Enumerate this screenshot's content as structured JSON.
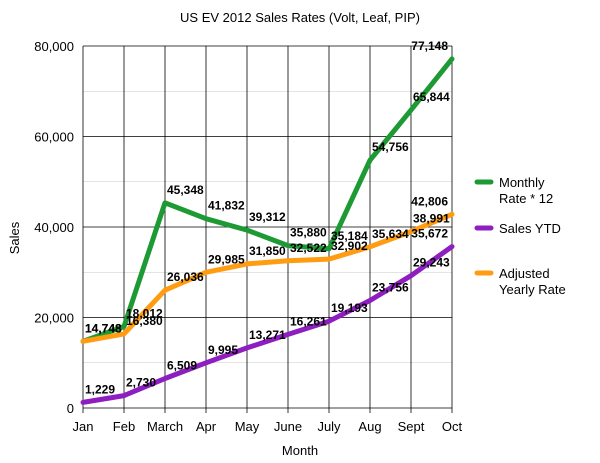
{
  "chart_data": {
    "type": "line",
    "title": "US EV 2012 Sales Rates (Volt, Leaf, PIP)",
    "xlabel": "Month",
    "ylabel": "Sales",
    "categories": [
      "Jan",
      "Feb",
      "March",
      "Apr",
      "May",
      "June",
      "July",
      "Aug",
      "Sept",
      "Oct"
    ],
    "ylim": [
      0,
      80000
    ],
    "yticks": [
      0,
      20000,
      40000,
      60000,
      80000
    ],
    "ytick_labels": [
      "0",
      "20,000",
      "40,000",
      "60,000",
      "80,000"
    ],
    "grid": "horizontal",
    "legend_position": "right",
    "series": [
      {
        "name": "Monthly Rate * 12",
        "legend_lines": [
          "Monthly",
          "Rate * 12"
        ],
        "color": "#1e9a35",
        "values": [
          14748,
          18012,
          45348,
          41832,
          39312,
          35880,
          35184,
          54756,
          65844,
          77148
        ],
        "labels": [
          "14,748",
          "18,012",
          "45,348",
          "41,832",
          "39,312",
          "35,880",
          "35,184",
          "54,756",
          "65,844",
          "77,148"
        ]
      },
      {
        "name": "Sales YTD",
        "legend_lines": [
          "Sales YTD"
        ],
        "color": "#8e1ec0",
        "values": [
          1229,
          2730,
          6509,
          9995,
          13271,
          16261,
          19193,
          23756,
          29243,
          35672
        ],
        "labels": [
          "1,229",
          "2,730",
          "6,509",
          "9,995",
          "13,271",
          "16,261",
          "19,193",
          "23,756",
          "29,243",
          "35,672"
        ]
      },
      {
        "name": "Adjusted Yearly Rate",
        "legend_lines": [
          "Adjusted",
          "Yearly Rate"
        ],
        "color": "#ff9c12",
        "values": [
          14748,
          16380,
          26036,
          29985,
          31850,
          32522,
          32902,
          35634,
          38991,
          42806
        ],
        "labels": [
          "14,748",
          "16,380",
          "26,036",
          "29,985",
          "31,850",
          "32,522",
          "32,902",
          "35,634",
          "38,991",
          "42,806"
        ]
      }
    ]
  }
}
